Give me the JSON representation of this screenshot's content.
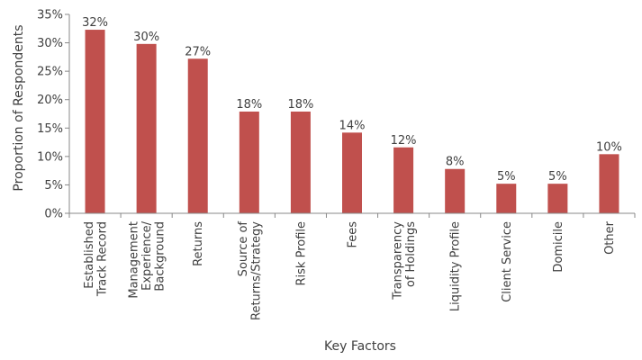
{
  "chart_data": {
    "type": "bar",
    "categories": [
      [
        "Established",
        "Track Record"
      ],
      [
        "Management",
        "Experience/",
        "Background"
      ],
      [
        "Returns"
      ],
      [
        "Source of",
        "Returns/Strategy"
      ],
      [
        "Risk Profile"
      ],
      [
        "Fees"
      ],
      [
        "Transparency",
        "of Holdings"
      ],
      [
        "Liquidity Profile"
      ],
      [
        "Client Service"
      ],
      [
        "Domicile"
      ],
      [
        "Other"
      ]
    ],
    "values": [
      32.3,
      29.8,
      27.2,
      17.9,
      17.9,
      14.2,
      11.6,
      7.8,
      5.2,
      5.2,
      10.4
    ],
    "data_labels": [
      "32%",
      "30%",
      "27%",
      "18%",
      "18%",
      "14%",
      "12%",
      "8%",
      "5%",
      "5%",
      "10%"
    ],
    "title": "",
    "xlabel": "Key Factors",
    "ylabel": "Proportion of Respondents",
    "ylim": [
      0,
      35
    ],
    "yticks": [
      0,
      5,
      10,
      15,
      20,
      25,
      30,
      35
    ],
    "ytick_labels": [
      "0%",
      "5%",
      "10%",
      "15%",
      "20%",
      "25%",
      "30%",
      "35%"
    ],
    "grid": false,
    "legend": "none",
    "bar_color": "#c0504d"
  }
}
